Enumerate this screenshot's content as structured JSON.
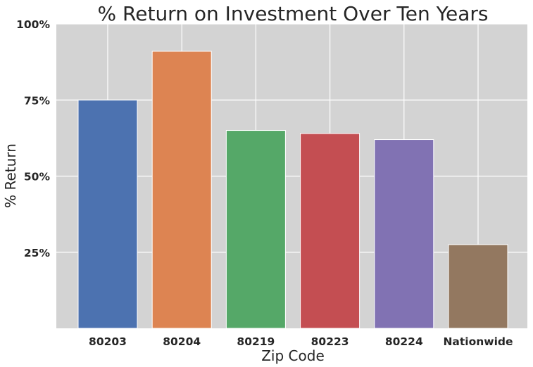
{
  "chart_data": {
    "type": "bar",
    "title": "% Return on Investment Over Ten Years",
    "xlabel": "Zip Code",
    "ylabel": "% Return",
    "categories": [
      "80203",
      "80204",
      "80219",
      "80223",
      "80224",
      "Nationwide"
    ],
    "values": [
      75,
      91,
      65,
      64,
      62,
      27.5
    ],
    "value_unit": "%",
    "ylim": [
      0,
      100
    ],
    "yticks": [
      25,
      50,
      75,
      100
    ],
    "ytick_labels": [
      "25%",
      "50%",
      "75%",
      "100%"
    ],
    "grid": true,
    "background_color": "#d3d3d3",
    "bar_colors": [
      "#4c72b0",
      "#dd8452",
      "#55a868",
      "#c44e52",
      "#8172b3",
      "#937860"
    ]
  }
}
